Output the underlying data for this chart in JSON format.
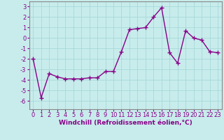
{
  "x": [
    0,
    1,
    2,
    3,
    4,
    5,
    6,
    7,
    8,
    9,
    10,
    11,
    12,
    13,
    14,
    15,
    16,
    17,
    18,
    19,
    20,
    21,
    22,
    23
  ],
  "y": [
    -2,
    -5.7,
    -3.4,
    -3.7,
    -3.9,
    -3.9,
    -3.9,
    -3.8,
    -3.8,
    -3.2,
    -3.2,
    -1.3,
    0.8,
    0.9,
    1.0,
    2.0,
    2.9,
    -1.4,
    -2.4,
    0.7,
    0.0,
    -0.2,
    -1.3,
    -1.4
  ],
  "line_color": "#880088",
  "marker": "+",
  "marker_size": 4,
  "marker_linewidth": 1.0,
  "bg_color": "#c8ecec",
  "grid_color": "#a0d4d4",
  "xlabel": "Windchill (Refroidissement éolien,°C)",
  "xlabel_fontsize": 6.5,
  "xlabel_color": "#880088",
  "ylim": [
    -6.8,
    3.5
  ],
  "xlim": [
    -0.5,
    23.5
  ],
  "yticks": [
    -6,
    -5,
    -4,
    -3,
    -2,
    -1,
    0,
    1,
    2,
    3
  ],
  "xticks": [
    0,
    1,
    2,
    3,
    4,
    5,
    6,
    7,
    8,
    9,
    10,
    11,
    12,
    13,
    14,
    15,
    16,
    17,
    18,
    19,
    20,
    21,
    22,
    23
  ],
  "tick_fontsize": 6.0,
  "tick_color": "#880088",
  "linewidth": 1.0,
  "spine_color": "#888888"
}
